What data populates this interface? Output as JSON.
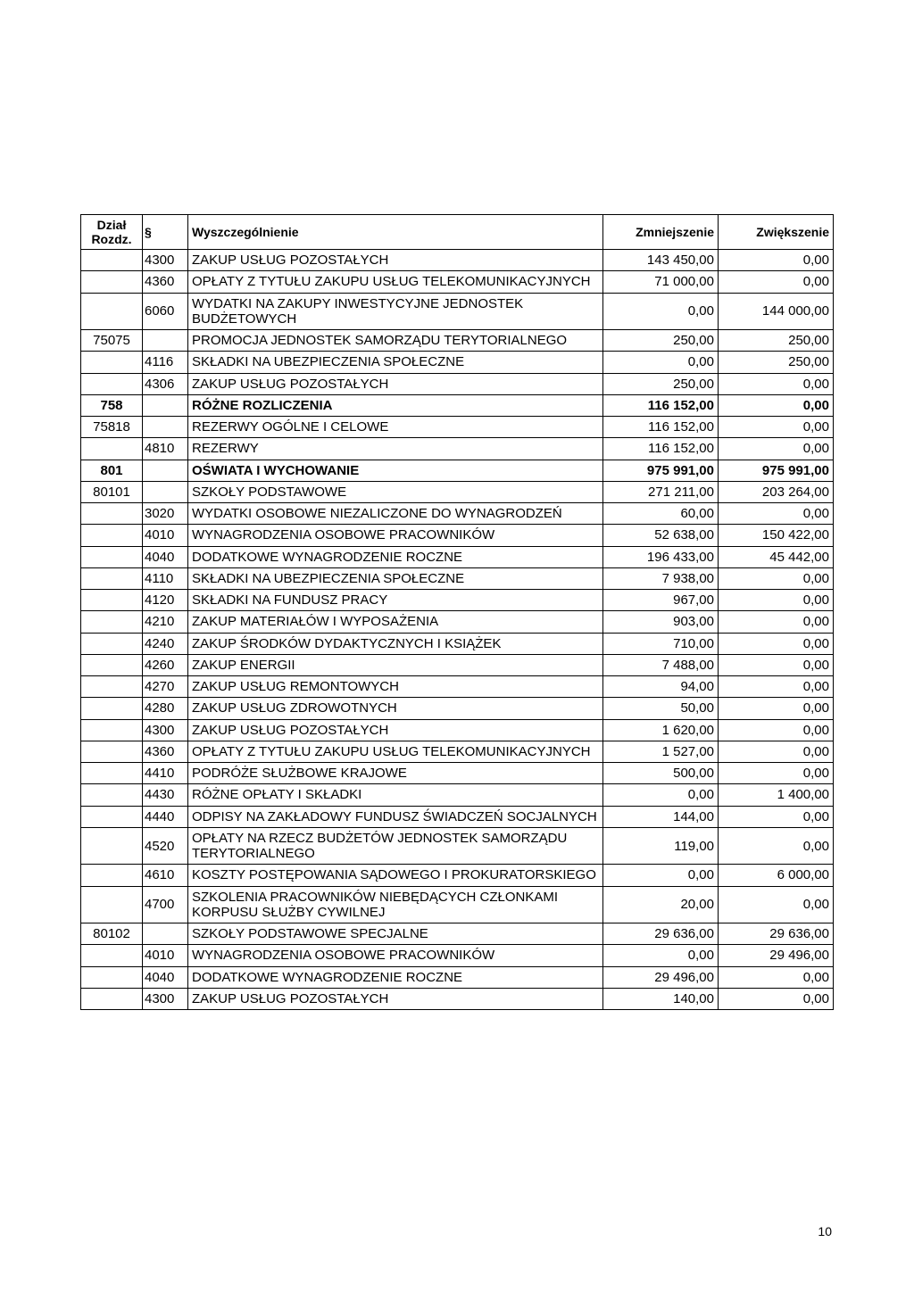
{
  "table": {
    "columns": [
      "Dział Rozdz.",
      "§",
      "Wyszczególnienie",
      "Zmniejszenie",
      "Zwiększenie"
    ],
    "col_classes": [
      "col-dzial",
      "col-para",
      "col-name",
      "col-num",
      "col-num"
    ],
    "header_fontsize": 14,
    "cell_fontsize": 15,
    "border_color": "#000000",
    "background_color": "#ffffff",
    "rows": [
      {
        "dzial": "",
        "para": "4300",
        "name": "ZAKUP USŁUG POZOSTAŁYCH",
        "dec": "143 450,00",
        "inc": "0,00",
        "bold": false
      },
      {
        "dzial": "",
        "para": "4360",
        "name": "OPŁATY Z TYTUŁU ZAKUPU USŁUG TELEKOMUNIKACYJNYCH",
        "dec": "71 000,00",
        "inc": "0,00",
        "bold": false
      },
      {
        "dzial": "",
        "para": "6060",
        "name": "WYDATKI NA ZAKUPY INWESTYCYJNE JEDNOSTEK BUDŻETOWYCH",
        "dec": "0,00",
        "inc": "144 000,00",
        "bold": false
      },
      {
        "dzial": "75075",
        "para": "",
        "name": "PROMOCJA JEDNOSTEK SAMORZĄDU TERYTORIALNEGO",
        "dec": "250,00",
        "inc": "250,00",
        "bold": false
      },
      {
        "dzial": "",
        "para": "4116",
        "name": "SKŁADKI NA UBEZPIECZENIA SPOŁECZNE",
        "dec": "0,00",
        "inc": "250,00",
        "bold": false
      },
      {
        "dzial": "",
        "para": "4306",
        "name": "ZAKUP USŁUG POZOSTAŁYCH",
        "dec": "250,00",
        "inc": "0,00",
        "bold": false
      },
      {
        "dzial": "758",
        "para": "",
        "name": "RÓŻNE ROZLICZENIA",
        "dec": "116 152,00",
        "inc": "0,00",
        "bold": true
      },
      {
        "dzial": "75818",
        "para": "",
        "name": "REZERWY OGÓLNE I CELOWE",
        "dec": "116 152,00",
        "inc": "0,00",
        "bold": false
      },
      {
        "dzial": "",
        "para": "4810",
        "name": "REZERWY",
        "dec": "116 152,00",
        "inc": "0,00",
        "bold": false
      },
      {
        "dzial": "801",
        "para": "",
        "name": "OŚWIATA I WYCHOWANIE",
        "dec": "975 991,00",
        "inc": "975 991,00",
        "bold": true
      },
      {
        "dzial": "80101",
        "para": "",
        "name": "SZKOŁY PODSTAWOWE",
        "dec": "271 211,00",
        "inc": "203 264,00",
        "bold": false
      },
      {
        "dzial": "",
        "para": "3020",
        "name": "WYDATKI OSOBOWE NIEZALICZONE DO WYNAGRODZEŃ",
        "dec": "60,00",
        "inc": "0,00",
        "bold": false
      },
      {
        "dzial": "",
        "para": "4010",
        "name": "WYNAGRODZENIA OSOBOWE PRACOWNIKÓW",
        "dec": "52 638,00",
        "inc": "150 422,00",
        "bold": false
      },
      {
        "dzial": "",
        "para": "4040",
        "name": "DODATKOWE WYNAGRODZENIE ROCZNE",
        "dec": "196 433,00",
        "inc": "45 442,00",
        "bold": false
      },
      {
        "dzial": "",
        "para": "4110",
        "name": "SKŁADKI NA UBEZPIECZENIA SPOŁECZNE",
        "dec": "7 938,00",
        "inc": "0,00",
        "bold": false
      },
      {
        "dzial": "",
        "para": "4120",
        "name": "SKŁADKI NA FUNDUSZ PRACY",
        "dec": "967,00",
        "inc": "0,00",
        "bold": false
      },
      {
        "dzial": "",
        "para": "4210",
        "name": "ZAKUP MATERIAŁÓW I WYPOSAŻENIA",
        "dec": "903,00",
        "inc": "0,00",
        "bold": false
      },
      {
        "dzial": "",
        "para": "4240",
        "name": "ZAKUP ŚRODKÓW DYDAKTYCZNYCH I KSIĄŻEK",
        "dec": "710,00",
        "inc": "0,00",
        "bold": false
      },
      {
        "dzial": "",
        "para": "4260",
        "name": "ZAKUP ENERGII",
        "dec": "7 488,00",
        "inc": "0,00",
        "bold": false
      },
      {
        "dzial": "",
        "para": "4270",
        "name": "ZAKUP USŁUG REMONTOWYCH",
        "dec": "94,00",
        "inc": "0,00",
        "bold": false
      },
      {
        "dzial": "",
        "para": "4280",
        "name": "ZAKUP USŁUG ZDROWOTNYCH",
        "dec": "50,00",
        "inc": "0,00",
        "bold": false
      },
      {
        "dzial": "",
        "para": "4300",
        "name": "ZAKUP USŁUG POZOSTAŁYCH",
        "dec": "1 620,00",
        "inc": "0,00",
        "bold": false
      },
      {
        "dzial": "",
        "para": "4360",
        "name": "OPŁATY Z TYTUŁU ZAKUPU USŁUG TELEKOMUNIKACYJNYCH",
        "dec": "1 527,00",
        "inc": "0,00",
        "bold": false
      },
      {
        "dzial": "",
        "para": "4410",
        "name": "PODRÓŻE SŁUŻBOWE KRAJOWE",
        "dec": "500,00",
        "inc": "0,00",
        "bold": false
      },
      {
        "dzial": "",
        "para": "4430",
        "name": "RÓŻNE OPŁATY I SKŁADKI",
        "dec": "0,00",
        "inc": "1 400,00",
        "bold": false
      },
      {
        "dzial": "",
        "para": "4440",
        "name": "ODPISY NA ZAKŁADOWY FUNDUSZ ŚWIADCZEŃ SOCJALNYCH",
        "dec": "144,00",
        "inc": "0,00",
        "bold": false
      },
      {
        "dzial": "",
        "para": "4520",
        "name": "OPŁATY NA RZECZ BUDŻETÓW JEDNOSTEK SAMORZĄDU TERYTORIALNEGO",
        "dec": "119,00",
        "inc": "0,00",
        "bold": false
      },
      {
        "dzial": "",
        "para": "4610",
        "name": "KOSZTY POSTĘPOWANIA SĄDOWEGO I PROKURATORSKIEGO",
        "dec": "0,00",
        "inc": "6 000,00",
        "bold": false
      },
      {
        "dzial": "",
        "para": "4700",
        "name": "SZKOLENIA PRACOWNIKÓW NIEBĘDĄCYCH CZŁONKAMI KORPUSU SŁUŻBY CYWILNEJ",
        "dec": "20,00",
        "inc": "0,00",
        "bold": false
      },
      {
        "dzial": "80102",
        "para": "",
        "name": "SZKOŁY PODSTAWOWE SPECJALNE",
        "dec": "29 636,00",
        "inc": "29 636,00",
        "bold": false
      },
      {
        "dzial": "",
        "para": "4010",
        "name": "WYNAGRODZENIA OSOBOWE PRACOWNIKÓW",
        "dec": "0,00",
        "inc": "29 496,00",
        "bold": false
      },
      {
        "dzial": "",
        "para": "4040",
        "name": "DODATKOWE WYNAGRODZENIE ROCZNE",
        "dec": "29 496,00",
        "inc": "0,00",
        "bold": false
      },
      {
        "dzial": "",
        "para": "4300",
        "name": "ZAKUP USŁUG POZOSTAŁYCH",
        "dec": "140,00",
        "inc": "0,00",
        "bold": false
      }
    ]
  },
  "page_number": "10"
}
